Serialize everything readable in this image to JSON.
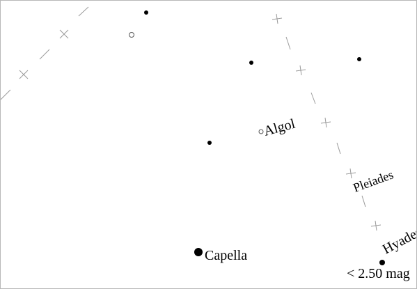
{
  "chart": {
    "labels": {
      "algol": "Algol",
      "pleiades": "Pleiades",
      "capella": "Capella",
      "hyades": "Hyades"
    },
    "legend": {
      "magnitude_limit": "< 2.50 mag"
    },
    "colors": {
      "background": "#ffffff",
      "star": "#000000",
      "grid": "#9a9a9a",
      "border": "#b8b8b8"
    }
  }
}
